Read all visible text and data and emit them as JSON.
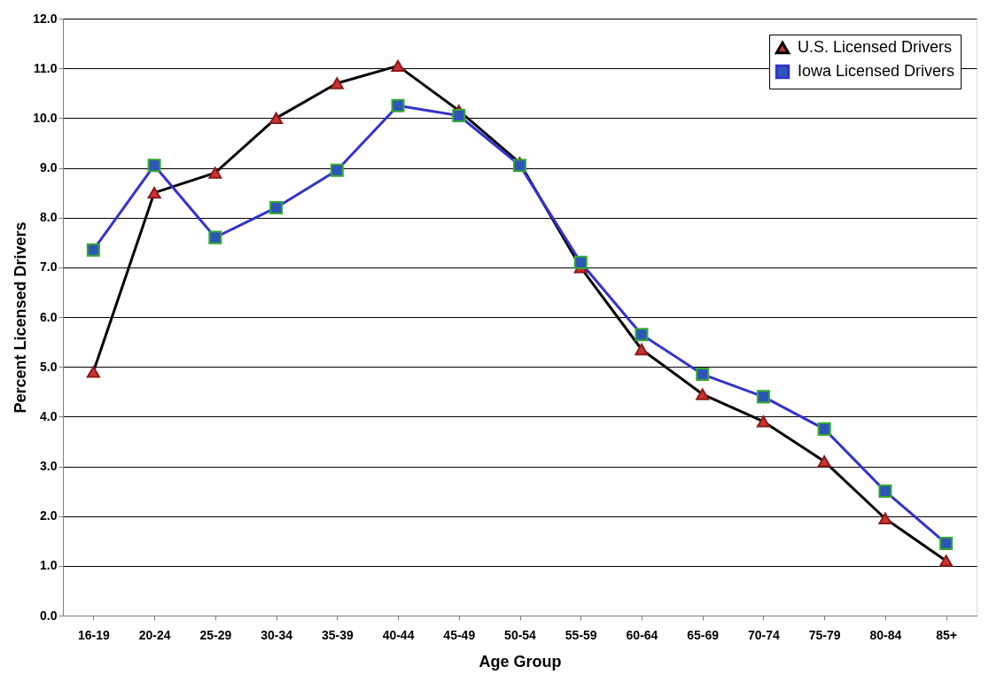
{
  "chart_data": {
    "type": "line",
    "xlabel": "Age Group",
    "ylabel": "Percent Licensed Drivers",
    "categories": [
      "16-19",
      "20-24",
      "25-29",
      "30-34",
      "35-39",
      "40-44",
      "45-49",
      "50-54",
      "55-59",
      "60-64",
      "65-69",
      "70-74",
      "75-79",
      "80-84",
      "85+"
    ],
    "series": [
      {
        "name": "U.S. Licensed Drivers",
        "color": "#000000",
        "marker": "triangle",
        "values": [
          4.9,
          8.5,
          8.9,
          10.0,
          10.7,
          11.05,
          10.15,
          9.1,
          7.0,
          5.35,
          4.45,
          3.9,
          3.1,
          1.95,
          1.1
        ]
      },
      {
        "name": "Iowa Licensed Drivers",
        "color": "#3333cc",
        "marker": "square",
        "values": [
          7.35,
          9.05,
          7.6,
          8.2,
          8.95,
          10.25,
          10.05,
          9.05,
          7.1,
          5.65,
          4.85,
          4.4,
          3.75,
          2.5,
          1.45
        ]
      }
    ],
    "ylim": [
      0,
      12
    ],
    "yticks": [
      {
        "value": 0,
        "label": "0.0"
      },
      {
        "value": 1,
        "label": "1.0"
      },
      {
        "value": 2,
        "label": "2.0"
      },
      {
        "value": 3,
        "label": "3.0"
      },
      {
        "value": 4,
        "label": "4.0"
      },
      {
        "value": 5,
        "label": "5.0"
      },
      {
        "value": 6,
        "label": "6.0"
      },
      {
        "value": 7,
        "label": "7.0"
      },
      {
        "value": 8,
        "label": "8.0"
      },
      {
        "value": 9,
        "label": "9.0"
      },
      {
        "value": 10,
        "label": "10.0"
      },
      {
        "value": 11,
        "label": "11.0"
      },
      {
        "value": 12,
        "label": "12.0"
      }
    ],
    "grid": "y",
    "legend": "top right",
    "line_style": "solid"
  }
}
